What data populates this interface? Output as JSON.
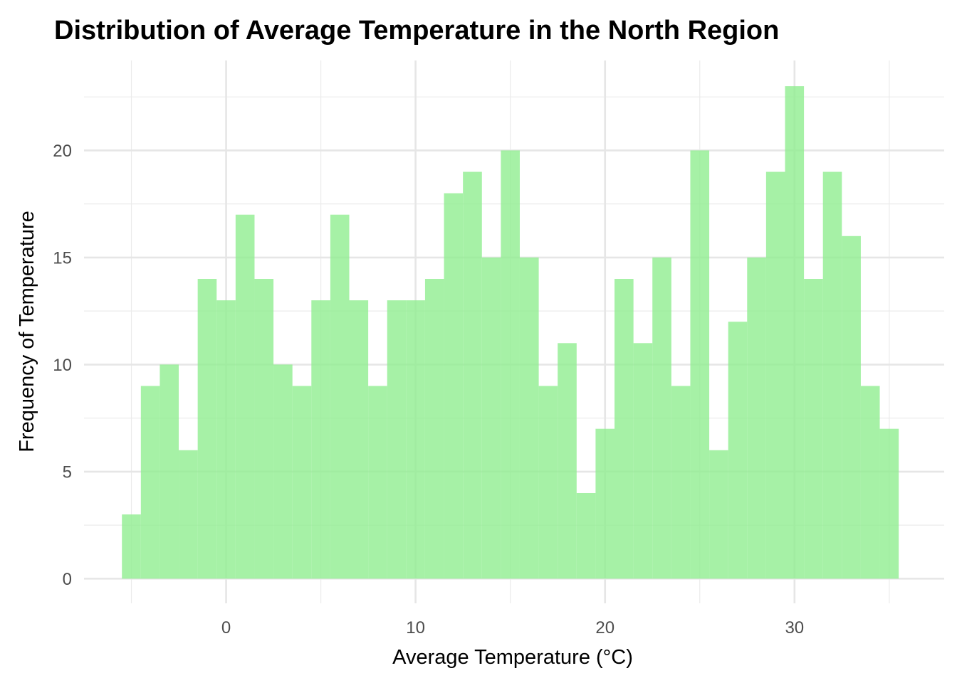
{
  "chart_data": {
    "type": "bar",
    "subtype": "histogram",
    "title": "Distribution of Average Temperature in the North Region",
    "xlabel": "Average Temperature (°C)",
    "ylabel": "Frequency of Temperature",
    "xlim": [
      -7.5,
      37.9
    ],
    "ylim": [
      -1.15,
      24.2
    ],
    "x_ticks": [
      0,
      10,
      20,
      30
    ],
    "y_ticks": [
      0,
      5,
      10,
      15,
      20
    ],
    "x_tick_labels": [
      "0",
      "10",
      "20",
      "30"
    ],
    "y_tick_labels": [
      "0",
      "5",
      "10",
      "15",
      "20"
    ],
    "grid": true,
    "bin_width": 1,
    "bins_start": [
      -5.5,
      -4.5,
      -3.5,
      -2.5,
      -1.5,
      -0.5,
      0.5,
      1.5,
      2.5,
      3.5,
      4.5,
      5.5,
      6.5,
      7.5,
      8.5,
      9.5,
      10.5,
      11.5,
      12.5,
      13.5,
      14.5,
      15.5,
      16.5,
      17.5,
      18.5,
      19.5,
      20.5,
      21.5,
      22.5,
      23.5,
      24.5,
      25.5,
      26.5,
      27.5,
      28.5,
      29.5,
      30.5,
      31.5,
      32.5,
      33.5,
      34.5
    ],
    "values": [
      3,
      9,
      10,
      6,
      14,
      13,
      17,
      14,
      10,
      9,
      13,
      17,
      13,
      9,
      13,
      13,
      14,
      18,
      19,
      15,
      20,
      15,
      9,
      11,
      4,
      7,
      14,
      11,
      15,
      9,
      20,
      6,
      12,
      15,
      19,
      23,
      14,
      19,
      16,
      9,
      7
    ],
    "bar_color": "#90EE90",
    "bar_opacity": 0.8
  }
}
